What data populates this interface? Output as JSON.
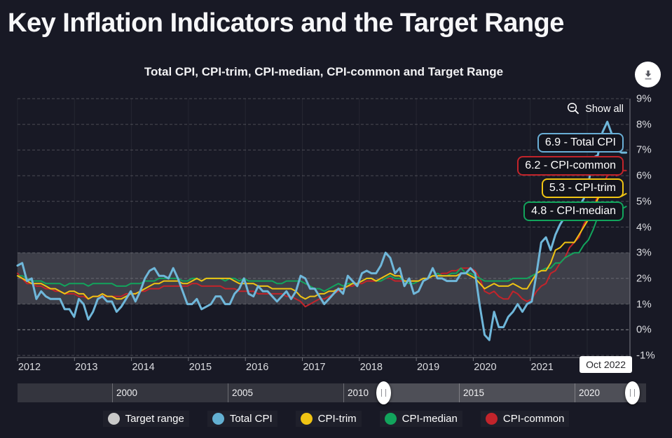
{
  "header": {
    "title": "Key Inflation Indicators and the Target Range",
    "subtitle": "Total CPI, CPI-trim, CPI-median, CPI-common and Target Range"
  },
  "controls": {
    "show_all_label": "Show all",
    "download_icon": "download-arrow-icon",
    "show_all_icon": "zoom-out-icon"
  },
  "value_labels": [
    {
      "text": "6.9 - Total CPI",
      "color": "#69aed6"
    },
    {
      "text": "6.2 - CPI-common",
      "color": "#c2242b"
    },
    {
      "text": "5.3 - CPI-trim",
      "color": "#f0c413"
    },
    {
      "text": "4.8 - CPI-median",
      "color": "#12a45c"
    }
  ],
  "chart_data": {
    "type": "line",
    "title": "Total CPI, CPI-trim, CPI-median, CPI-common and Target Range",
    "frequency": "monthly",
    "x_start": "2012-01",
    "x_end": "2022-10",
    "ylim": [
      -1,
      9
    ],
    "grid": true,
    "legend_position": "bottom",
    "y_tick_labels": [
      "9%",
      "8%",
      "7%",
      "6%",
      "5%",
      "4%",
      "3%",
      "2%",
      "1%",
      "0%",
      "-1%"
    ],
    "y_tick_values": [
      9,
      8,
      7,
      6,
      5,
      4,
      3,
      2,
      1,
      0,
      -1
    ],
    "x_tick_labels": [
      "2012",
      "2013",
      "2014",
      "2015",
      "2016",
      "2017",
      "2018",
      "2019",
      "2020",
      "2021"
    ],
    "last_x_label": "Oct 2022",
    "target_range": {
      "name": "Target range",
      "low": 1,
      "high": 3,
      "color": "#c9c9c9"
    },
    "series": [
      {
        "name": "Total CPI",
        "color": "#6fb7da",
        "last_value": 6.9,
        "values": [
          2.5,
          2.6,
          1.9,
          2.0,
          1.2,
          1.5,
          1.3,
          1.2,
          1.2,
          1.2,
          0.8,
          0.8,
          0.5,
          1.2,
          1.0,
          0.4,
          0.7,
          1.2,
          1.3,
          1.1,
          1.1,
          0.7,
          0.9,
          1.2,
          1.5,
          1.1,
          1.5,
          2.0,
          2.3,
          2.4,
          2.1,
          2.1,
          2.0,
          2.4,
          2.0,
          1.5,
          1.0,
          1.0,
          1.2,
          0.8,
          0.9,
          1.0,
          1.3,
          1.3,
          1.0,
          1.0,
          1.4,
          1.6,
          2.0,
          1.4,
          1.3,
          1.7,
          1.5,
          1.5,
          1.3,
          1.1,
          1.3,
          1.5,
          1.2,
          1.5,
          2.1,
          2.0,
          1.6,
          1.6,
          1.3,
          1.0,
          1.2,
          1.4,
          1.6,
          1.4,
          2.1,
          1.9,
          1.7,
          2.2,
          2.3,
          2.2,
          2.2,
          2.5,
          3.0,
          2.8,
          2.2,
          2.4,
          1.7,
          2.0,
          1.4,
          1.5,
          1.9,
          2.0,
          2.4,
          2.0,
          2.0,
          1.9,
          1.9,
          1.9,
          2.2,
          2.2,
          2.4,
          2.2,
          0.9,
          -0.2,
          -0.4,
          0.7,
          0.1,
          0.1,
          0.5,
          0.7,
          1.0,
          0.7,
          1.0,
          1.1,
          2.2,
          3.4,
          3.6,
          3.1,
          3.7,
          4.1,
          4.4,
          4.7,
          4.7,
          4.8,
          5.1,
          5.7,
          6.7,
          6.8,
          7.7,
          8.1,
          7.6,
          7.0,
          6.9,
          6.9
        ]
      },
      {
        "name": "CPI-trim",
        "color": "#f0c413",
        "last_value": 5.3,
        "values": [
          2.1,
          2.0,
          1.9,
          1.8,
          1.8,
          1.8,
          1.7,
          1.6,
          1.6,
          1.5,
          1.4,
          1.5,
          1.5,
          1.4,
          1.4,
          1.2,
          1.3,
          1.3,
          1.4,
          1.3,
          1.3,
          1.2,
          1.2,
          1.3,
          1.4,
          1.4,
          1.5,
          1.6,
          1.7,
          1.8,
          1.8,
          1.9,
          1.9,
          1.9,
          1.9,
          1.8,
          1.8,
          1.9,
          2.0,
          1.9,
          2.0,
          2.0,
          2.0,
          2.0,
          2.0,
          2.0,
          1.9,
          1.8,
          1.8,
          1.8,
          1.8,
          1.7,
          1.7,
          1.7,
          1.6,
          1.6,
          1.6,
          1.6,
          1.6,
          1.5,
          1.3,
          1.2,
          1.3,
          1.3,
          1.4,
          1.4,
          1.5,
          1.5,
          1.6,
          1.6,
          1.7,
          1.8,
          1.8,
          1.9,
          2.0,
          2.0,
          1.9,
          2.0,
          2.1,
          2.2,
          2.1,
          2.1,
          1.9,
          1.9,
          1.9,
          1.9,
          2.0,
          2.0,
          2.1,
          2.1,
          2.1,
          2.1,
          2.1,
          2.1,
          2.2,
          2.2,
          2.1,
          2.0,
          1.8,
          1.6,
          1.7,
          1.8,
          1.7,
          1.7,
          1.7,
          1.8,
          1.7,
          1.6,
          1.6,
          1.9,
          2.2,
          2.3,
          2.3,
          2.6,
          3.1,
          3.2,
          3.4,
          3.4,
          3.4,
          3.7,
          4.0,
          4.3,
          4.7,
          5.1,
          5.4,
          5.5,
          5.4,
          5.2,
          5.2,
          5.3
        ]
      },
      {
        "name": "CPI-median",
        "color": "#12a45c",
        "last_value": 4.8,
        "values": [
          2.1,
          2.1,
          2.0,
          1.9,
          1.9,
          1.9,
          1.8,
          1.8,
          1.8,
          1.8,
          1.7,
          1.8,
          1.8,
          1.8,
          1.8,
          1.7,
          1.8,
          1.8,
          1.8,
          1.8,
          1.8,
          1.7,
          1.7,
          1.7,
          1.8,
          1.8,
          1.8,
          1.9,
          1.9,
          1.9,
          2.0,
          2.0,
          2.0,
          2.0,
          2.0,
          1.9,
          1.9,
          2.0,
          2.0,
          1.9,
          2.0,
          2.0,
          2.0,
          2.0,
          1.9,
          2.0,
          2.0,
          1.9,
          2.0,
          1.9,
          1.9,
          1.9,
          1.9,
          1.9,
          1.9,
          1.8,
          1.8,
          1.9,
          1.9,
          1.9,
          1.9,
          1.8,
          1.7,
          1.6,
          1.6,
          1.5,
          1.6,
          1.7,
          1.8,
          1.7,
          1.8,
          1.8,
          1.8,
          1.9,
          2.0,
          2.0,
          1.9,
          1.9,
          2.0,
          2.1,
          2.0,
          2.0,
          1.9,
          1.8,
          1.8,
          1.9,
          2.0,
          2.0,
          2.1,
          2.2,
          2.1,
          2.1,
          2.2,
          2.2,
          2.4,
          2.2,
          2.2,
          2.1,
          2.0,
          1.9,
          1.9,
          1.9,
          1.9,
          1.9,
          1.9,
          2.0,
          2.0,
          2.0,
          2.0,
          2.1,
          2.2,
          2.3,
          2.4,
          2.4,
          2.6,
          2.6,
          2.8,
          2.9,
          3.0,
          3.0,
          3.3,
          3.5,
          3.9,
          4.4,
          4.7,
          4.9,
          5.0,
          4.8,
          4.7,
          4.8
        ]
      },
      {
        "name": "CPI-common",
        "color": "#c2242b",
        "last_value": 6.2,
        "values": [
          2.2,
          2.0,
          1.8,
          1.8,
          1.7,
          1.7,
          1.6,
          1.6,
          1.5,
          1.5,
          1.4,
          1.4,
          1.4,
          1.3,
          1.3,
          1.2,
          1.3,
          1.3,
          1.3,
          1.3,
          1.3,
          1.3,
          1.3,
          1.4,
          1.4,
          1.4,
          1.5,
          1.5,
          1.6,
          1.6,
          1.6,
          1.7,
          1.7,
          1.7,
          1.7,
          1.7,
          1.7,
          1.8,
          1.8,
          1.7,
          1.7,
          1.7,
          1.7,
          1.7,
          1.6,
          1.6,
          1.6,
          1.5,
          1.5,
          1.5,
          1.5,
          1.4,
          1.4,
          1.4,
          1.4,
          1.4,
          1.4,
          1.3,
          1.3,
          1.2,
          1.1,
          0.9,
          1.0,
          1.1,
          1.2,
          1.2,
          1.3,
          1.4,
          1.5,
          1.6,
          1.7,
          1.7,
          1.8,
          1.8,
          1.9,
          1.9,
          1.9,
          1.9,
          2.0,
          2.0,
          1.9,
          1.9,
          1.9,
          1.9,
          1.9,
          1.9,
          2.0,
          2.0,
          2.1,
          2.1,
          2.2,
          2.2,
          2.3,
          2.3,
          2.4,
          2.4,
          2.4,
          2.3,
          2.0,
          1.5,
          1.4,
          1.5,
          1.3,
          1.2,
          1.2,
          1.5,
          1.4,
          1.2,
          1.1,
          1.2,
          1.5,
          1.7,
          1.8,
          2.2,
          2.3,
          2.6,
          2.8,
          3.2,
          3.4,
          3.6,
          4.1,
          4.4,
          4.8,
          5.2,
          5.6,
          6.0,
          6.1,
          6.0,
          6.2,
          6.2
        ]
      }
    ]
  },
  "navigator": {
    "labels": [
      "2000",
      "2005",
      "2010",
      "2015",
      "2020"
    ],
    "selected_range": "2012 to Oct 2022"
  },
  "legend": {
    "items": [
      {
        "label": "Target range",
        "color": "#c9c9c9"
      },
      {
        "label": "Total CPI",
        "color": "#63b0d2"
      },
      {
        "label": "CPI-trim",
        "color": "#f0c413"
      },
      {
        "label": "CPI-median",
        "color": "#12a45c"
      },
      {
        "label": "CPI-common",
        "color": "#c2242b"
      }
    ]
  }
}
